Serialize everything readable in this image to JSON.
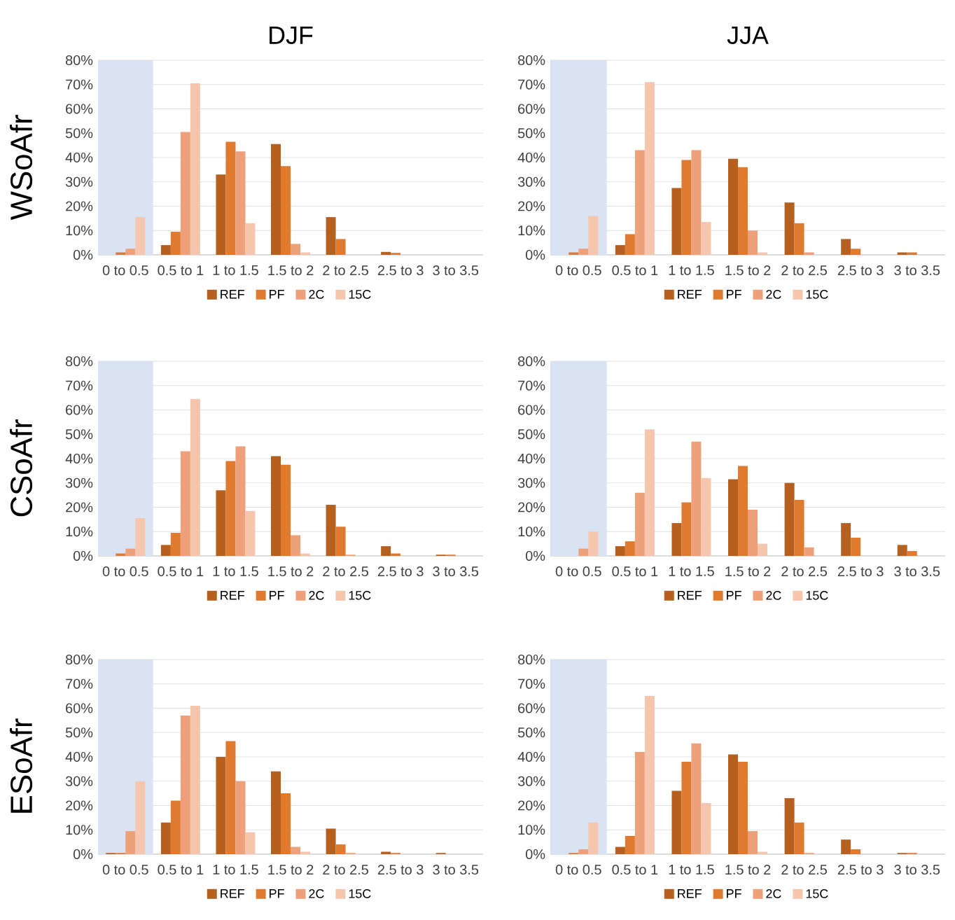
{
  "chart_data": [
    {
      "type": "bar",
      "title": "DJF",
      "ylabel": "WSoAfr",
      "categories": [
        "0 to 0.5",
        "0.5 to 1",
        "1 to 1.5",
        "1.5 to 2",
        "2 to 2.5",
        "2.5 to 3",
        "3 to 3.5"
      ],
      "ylim": [
        0,
        80
      ],
      "yticks": [
        {
          "value": 0,
          "label": "0%"
        },
        {
          "value": 10,
          "label": "10%"
        },
        {
          "value": 20,
          "label": "20%"
        },
        {
          "value": 30,
          "label": "30%"
        },
        {
          "value": 40,
          "label": "40%"
        },
        {
          "value": 50,
          "label": "50%"
        },
        {
          "value": 60,
          "label": "60%"
        },
        {
          "value": 70,
          "label": "70%"
        },
        {
          "value": 80,
          "label": "80%"
        }
      ],
      "grid": "y",
      "legend": "bottom",
      "bands": [
        {
          "axis": "x",
          "from": "0 to 0.5",
          "to": "0 to 0.5",
          "color": "#dae3f3"
        }
      ],
      "series": [
        {
          "name": "REF",
          "color": "#b5601e",
          "values": [
            0,
            4,
            33,
            45.5,
            15.5,
            1.2,
            0
          ]
        },
        {
          "name": "PF",
          "color": "#e07a2f",
          "values": [
            1,
            9.5,
            46.5,
            36.5,
            6.5,
            0.8,
            0
          ]
        },
        {
          "name": "2C",
          "color": "#eea07a",
          "values": [
            2.5,
            50.5,
            42.5,
            4.5,
            0,
            0,
            0
          ]
        },
        {
          "name": "15C",
          "color": "#f5c5ad",
          "values": [
            15.5,
            70.5,
            13,
            1,
            0,
            0,
            0
          ]
        }
      ]
    },
    {
      "type": "bar",
      "title": "JJA",
      "categories": [
        "0 to 0.5",
        "0.5 to 1",
        "1 to 1.5",
        "1.5 to 2",
        "2 to 2.5",
        "2.5 to 3",
        "3 to 3.5"
      ],
      "ylim": [
        0,
        80
      ],
      "yticks": [
        {
          "value": 0,
          "label": "0%"
        },
        {
          "value": 10,
          "label": "10%"
        },
        {
          "value": 20,
          "label": "20%"
        },
        {
          "value": 30,
          "label": "30%"
        },
        {
          "value": 40,
          "label": "40%"
        },
        {
          "value": 50,
          "label": "50%"
        },
        {
          "value": 60,
          "label": "60%"
        },
        {
          "value": 70,
          "label": "70%"
        },
        {
          "value": 80,
          "label": "80%"
        }
      ],
      "grid": "y",
      "legend": "bottom",
      "bands": [
        {
          "axis": "x",
          "from": "0 to 0.5",
          "to": "0 to 0.5",
          "color": "#dae3f3"
        }
      ],
      "series": [
        {
          "name": "REF",
          "color": "#b5601e",
          "values": [
            0,
            4,
            27.5,
            39.5,
            21.5,
            6.5,
            1
          ]
        },
        {
          "name": "PF",
          "color": "#e07a2f",
          "values": [
            1,
            8.5,
            39,
            36,
            13,
            2.5,
            1
          ]
        },
        {
          "name": "2C",
          "color": "#eea07a",
          "values": [
            2.5,
            43,
            43,
            10,
            1,
            0,
            0
          ]
        },
        {
          "name": "15C",
          "color": "#f5c5ad",
          "values": [
            16,
            71,
            13.5,
            1,
            0,
            0,
            0
          ]
        }
      ]
    },
    {
      "type": "bar",
      "ylabel": "CSoAfr",
      "categories": [
        "0 to 0.5",
        "0.5 to 1",
        "1 to 1.5",
        "1.5 to 2",
        "2 to 2.5",
        "2.5 to 3",
        "3 to 3.5"
      ],
      "ylim": [
        0,
        80
      ],
      "yticks": [
        {
          "value": 0,
          "label": "0%"
        },
        {
          "value": 10,
          "label": "10%"
        },
        {
          "value": 20,
          "label": "20%"
        },
        {
          "value": 30,
          "label": "30%"
        },
        {
          "value": 40,
          "label": "40%"
        },
        {
          "value": 50,
          "label": "50%"
        },
        {
          "value": 60,
          "label": "60%"
        },
        {
          "value": 70,
          "label": "70%"
        },
        {
          "value": 80,
          "label": "80%"
        }
      ],
      "grid": "y",
      "legend": "bottom",
      "bands": [
        {
          "axis": "x",
          "from": "0 to 0.5",
          "to": "0 to 0.5",
          "color": "#dae3f3"
        }
      ],
      "series": [
        {
          "name": "REF",
          "color": "#b5601e",
          "values": [
            0,
            4.5,
            27,
            41,
            21,
            4,
            0.5
          ]
        },
        {
          "name": "PF",
          "color": "#e07a2f",
          "values": [
            1,
            9.5,
            39,
            37.5,
            12,
            1,
            0.5
          ]
        },
        {
          "name": "2C",
          "color": "#eea07a",
          "values": [
            3,
            43,
            45,
            8.5,
            0.5,
            0,
            0
          ]
        },
        {
          "name": "15C",
          "color": "#f5c5ad",
          "values": [
            15.5,
            64.5,
            18.5,
            1,
            0,
            0,
            0
          ]
        }
      ]
    },
    {
      "type": "bar",
      "categories": [
        "0 to 0.5",
        "0.5 to 1",
        "1 to 1.5",
        "1.5 to 2",
        "2 to 2.5",
        "2.5 to 3",
        "3 to 3.5"
      ],
      "ylim": [
        0,
        80
      ],
      "yticks": [
        {
          "value": 0,
          "label": "0%"
        },
        {
          "value": 10,
          "label": "10%"
        },
        {
          "value": 20,
          "label": "20%"
        },
        {
          "value": 30,
          "label": "30%"
        },
        {
          "value": 40,
          "label": "40%"
        },
        {
          "value": 50,
          "label": "50%"
        },
        {
          "value": 60,
          "label": "60%"
        },
        {
          "value": 70,
          "label": "70%"
        },
        {
          "value": 80,
          "label": "80%"
        }
      ],
      "grid": "y",
      "legend": "bottom",
      "bands": [
        {
          "axis": "x",
          "from": "0 to 0.5",
          "to": "0 to 0.5",
          "color": "#dae3f3"
        }
      ],
      "series": [
        {
          "name": "REF",
          "color": "#b5601e",
          "values": [
            0,
            4,
            13.5,
            31.5,
            30,
            13.5,
            4.5
          ]
        },
        {
          "name": "PF",
          "color": "#e07a2f",
          "values": [
            0,
            6,
            22,
            37,
            23,
            7.5,
            2
          ]
        },
        {
          "name": "2C",
          "color": "#eea07a",
          "values": [
            3,
            26,
            47,
            19,
            3.5,
            0,
            0
          ]
        },
        {
          "name": "15C",
          "color": "#f5c5ad",
          "values": [
            10,
            52,
            32,
            5,
            0,
            0,
            0
          ]
        }
      ]
    },
    {
      "type": "bar",
      "ylabel": "ESoAfr",
      "categories": [
        "0 to 0.5",
        "0.5 to 1",
        "1 to 1.5",
        "1.5 to 2",
        "2 to 2.5",
        "2.5 to 3",
        "3 to 3.5"
      ],
      "ylim": [
        0,
        80
      ],
      "yticks": [
        {
          "value": 0,
          "label": "0%"
        },
        {
          "value": 10,
          "label": "10%"
        },
        {
          "value": 20,
          "label": "20%"
        },
        {
          "value": 30,
          "label": "30%"
        },
        {
          "value": 40,
          "label": "40%"
        },
        {
          "value": 50,
          "label": "50%"
        },
        {
          "value": 60,
          "label": "60%"
        },
        {
          "value": 70,
          "label": "70%"
        },
        {
          "value": 80,
          "label": "80%"
        }
      ],
      "grid": "y",
      "legend": "bottom",
      "bands": [
        {
          "axis": "x",
          "from": "0 to 0.5",
          "to": "0 to 0.5",
          "color": "#dae3f3"
        }
      ],
      "series": [
        {
          "name": "REF",
          "color": "#b5601e",
          "values": [
            0.5,
            13,
            40,
            34,
            10.5,
            1,
            0.5
          ]
        },
        {
          "name": "PF",
          "color": "#e07a2f",
          "values": [
            0.5,
            22,
            46.5,
            25,
            4,
            0.5,
            0
          ]
        },
        {
          "name": "2C",
          "color": "#eea07a",
          "values": [
            9.5,
            57,
            30,
            3,
            0.5,
            0,
            0
          ]
        },
        {
          "name": "15C",
          "color": "#f5c5ad",
          "values": [
            30,
            61,
            9,
            1,
            0,
            0,
            0
          ]
        }
      ]
    },
    {
      "type": "bar",
      "categories": [
        "0 to 0.5",
        "0.5 to 1",
        "1 to 1.5",
        "1.5 to 2",
        "2 to 2.5",
        "2.5 to 3",
        "3 to 3.5"
      ],
      "ylim": [
        0,
        80
      ],
      "yticks": [
        {
          "value": 0,
          "label": "0%"
        },
        {
          "value": 10,
          "label": "10%"
        },
        {
          "value": 20,
          "label": "20%"
        },
        {
          "value": 30,
          "label": "30%"
        },
        {
          "value": 40,
          "label": "40%"
        },
        {
          "value": 50,
          "label": "50%"
        },
        {
          "value": 60,
          "label": "60%"
        },
        {
          "value": 70,
          "label": "70%"
        },
        {
          "value": 80,
          "label": "80%"
        }
      ],
      "grid": "y",
      "legend": "bottom",
      "bands": [
        {
          "axis": "x",
          "from": "0 to 0.5",
          "to": "0 to 0.5",
          "color": "#dae3f3"
        }
      ],
      "series": [
        {
          "name": "REF",
          "color": "#b5601e",
          "values": [
            0,
            3,
            26,
            41,
            23,
            6,
            0.5
          ]
        },
        {
          "name": "PF",
          "color": "#e07a2f",
          "values": [
            0.5,
            7.5,
            38,
            38,
            13,
            2,
            0.5
          ]
        },
        {
          "name": "2C",
          "color": "#eea07a",
          "values": [
            2,
            42,
            45.5,
            9.5,
            0.5,
            0,
            0
          ]
        },
        {
          "name": "15C",
          "color": "#f5c5ad",
          "values": [
            13,
            65,
            21,
            1,
            0,
            0,
            0
          ]
        }
      ]
    }
  ]
}
